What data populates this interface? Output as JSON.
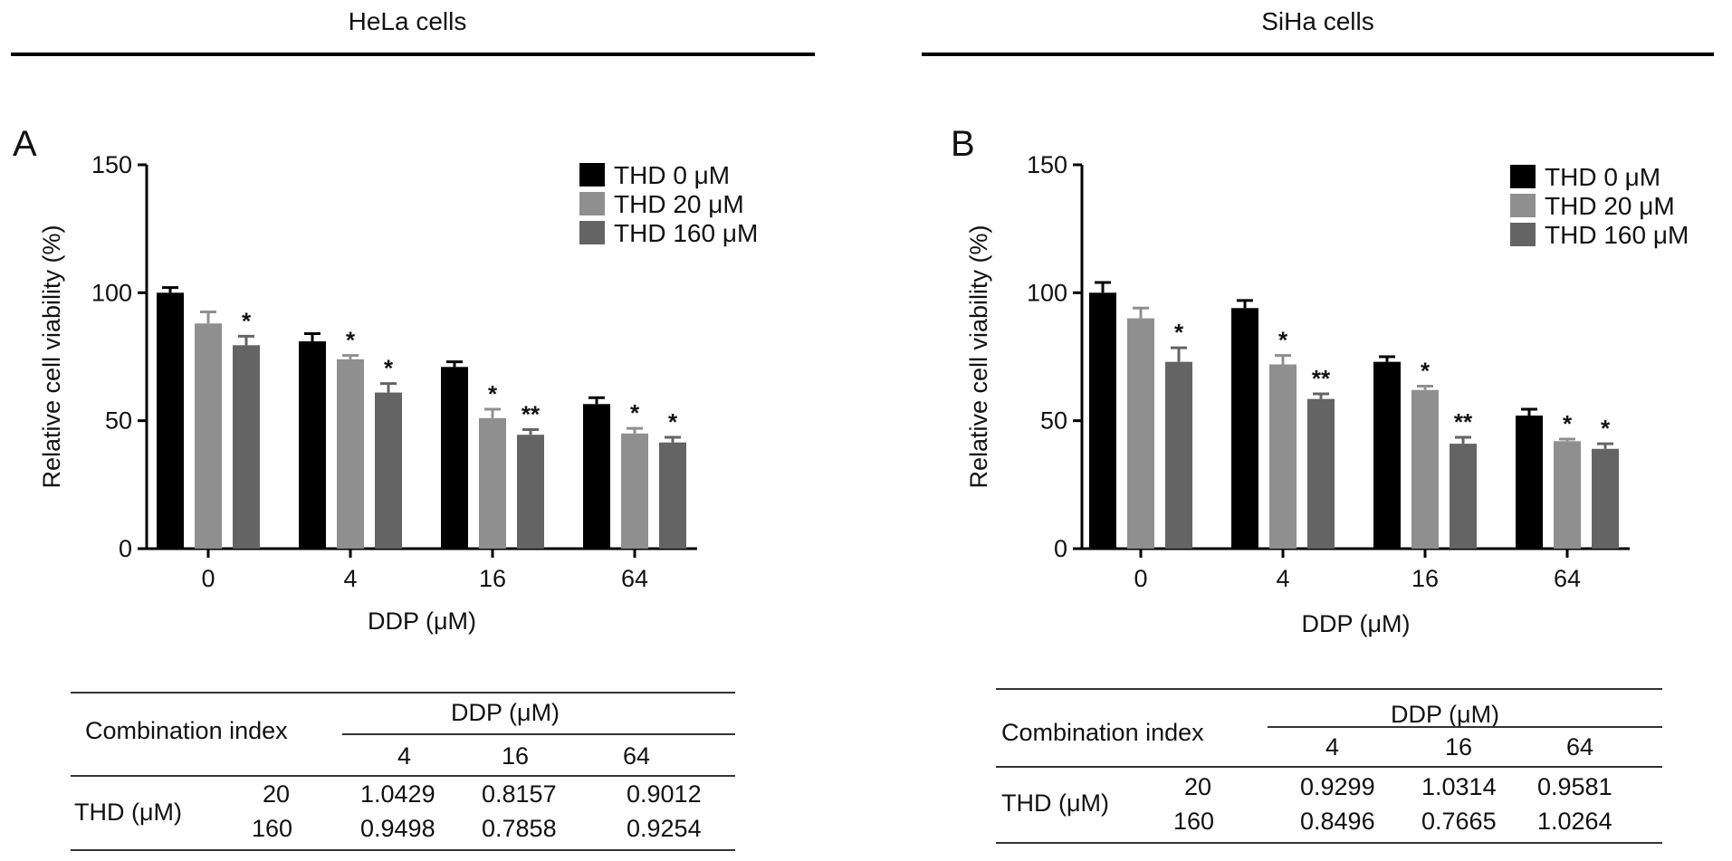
{
  "headers": {
    "left": "HeLa cells",
    "right": "SiHa cells"
  },
  "colors": {
    "thd0": "#000000",
    "thd20": "#8f8f8f",
    "thd160": "#646464"
  },
  "chart_data": [
    {
      "type": "bar",
      "panel": "A",
      "cell_line": "HeLa cells",
      "xlabel": "DDP (μM)",
      "ylabel": "Relative cell viability (%)",
      "ylim": [
        0,
        150
      ],
      "yticks": [
        0,
        50,
        100,
        150
      ],
      "categories": [
        "0",
        "4",
        "16",
        "64"
      ],
      "legend_position": "top-right",
      "series": [
        {
          "name": "THD 0 μM",
          "values": [
            100,
            81,
            71,
            56.5
          ],
          "errors": [
            2,
            3,
            2,
            2.5
          ],
          "significance": [
            "",
            "",
            "",
            ""
          ]
        },
        {
          "name": "THD 20 μM",
          "values": [
            88,
            74,
            51,
            45
          ],
          "errors": [
            4.5,
            1.5,
            3.5,
            2
          ],
          "significance": [
            "",
            "*",
            "*",
            "*"
          ]
        },
        {
          "name": "THD 160 μM",
          "values": [
            79.5,
            61,
            44.5,
            41.5
          ],
          "errors": [
            3.5,
            3.5,
            2,
            2
          ],
          "significance": [
            "*",
            "*",
            "**",
            "*"
          ]
        }
      ]
    },
    {
      "type": "bar",
      "panel": "B",
      "cell_line": "SiHa cells",
      "xlabel": "DDP (μM)",
      "ylabel": "Relative cell viability (%)",
      "ylim": [
        0,
        150
      ],
      "yticks": [
        0,
        50,
        100,
        150
      ],
      "categories": [
        "0",
        "4",
        "16",
        "64"
      ],
      "legend_position": "top-right",
      "series": [
        {
          "name": "THD 0 μM",
          "values": [
            100,
            94,
            73,
            52
          ],
          "errors": [
            4,
            3,
            2,
            2.5
          ],
          "significance": [
            "",
            "",
            "",
            ""
          ]
        },
        {
          "name": "THD 20 μM",
          "values": [
            90,
            72,
            62,
            42
          ],
          "errors": [
            4,
            3.5,
            1.5,
            0.8
          ],
          "significance": [
            "",
            "*",
            "*",
            "*"
          ]
        },
        {
          "name": "THD 160 μM",
          "values": [
            73,
            58.5,
            41,
            39
          ],
          "errors": [
            5.5,
            2,
            2.5,
            2
          ],
          "significance": [
            "*",
            "**",
            "**",
            "*"
          ]
        }
      ]
    }
  ],
  "tables": [
    {
      "title": "Combination index",
      "col_group": "DDP (μM)",
      "columns": [
        "4",
        "16",
        "64"
      ],
      "row_group": "THD (μM)",
      "rows": [
        {
          "label": "20",
          "values": [
            "1.0429",
            "0.8157",
            "0.9012"
          ]
        },
        {
          "label": "160",
          "values": [
            "0.9498",
            "0.7858",
            "0.9254"
          ]
        }
      ]
    },
    {
      "title": "Combination index",
      "col_group": "DDP (μM)",
      "columns": [
        "4",
        "16",
        "64"
      ],
      "row_group": "THD (μM)",
      "rows": [
        {
          "label": "20",
          "values": [
            "0.9299",
            "1.0314",
            "0.9581"
          ]
        },
        {
          "label": "160",
          "values": [
            "0.8496",
            "0.7665",
            "1.0264"
          ]
        }
      ]
    }
  ]
}
